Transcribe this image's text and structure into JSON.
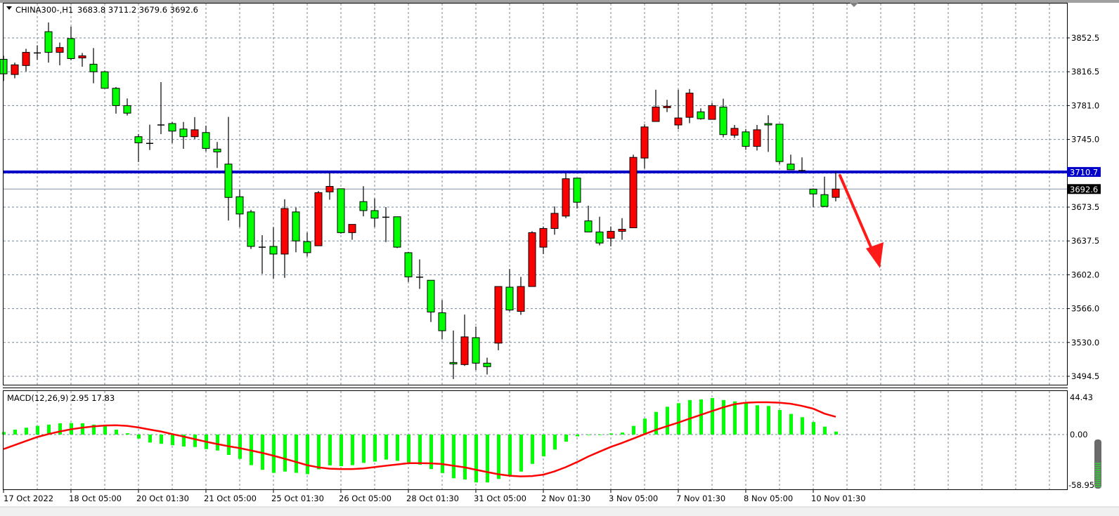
{
  "header": {
    "symbol_label": "CHINA300-,H1",
    "ohlc_text": "3683.8 3711.2 3679.6 3692.6",
    "menu_icon": "triangle-down-icon"
  },
  "macd": {
    "label": "MACD(12,26,9) 2.95 17.83",
    "axis_top": "44.43",
    "axis_zero": "0.00",
    "axis_bottom": "-58.95"
  },
  "price_axis": {
    "ticks": [
      "3852.5",
      "3816.5",
      "3781.0",
      "3745.0",
      "3673.5",
      "3637.5",
      "3602.0",
      "3566.0",
      "3530.0",
      "3494.5"
    ],
    "horizontal_line_label": "3710.7",
    "current_price_label": "3692.6"
  },
  "time_axis": {
    "labels": [
      "17 Oct 2022",
      "18 Oct 05:00",
      "20 Oct 01:30",
      "21 Oct 05:00",
      "25 Oct 01:30",
      "26 Oct 05:00",
      "28 Oct 01:30",
      "31 Oct 05:00",
      "2 Nov 01:30",
      "3 Nov 05:00",
      "7 Nov 01:30",
      "8 Nov 05:00",
      "10 Nov 01:30"
    ]
  },
  "colors": {
    "bull_candle": "#ff0000",
    "bear_candle": "#00ff00",
    "horizontal_line": "#0000c8",
    "macd_histogram": "#00ff00",
    "macd_signal": "#ff0000",
    "arrow": "#ff1a1a",
    "grid": "#778899"
  },
  "chart_data": [
    {
      "type": "candlestick",
      "title": "CHINA300-,H1",
      "timeframe": "H1",
      "ylim": [
        3494.5,
        3852.5
      ],
      "grid": true,
      "horizontal_line": 3710.7,
      "current_price": 3692.6,
      "x_tick_labels": [
        "17 Oct 2022",
        "18 Oct 05:00",
        "20 Oct 01:30",
        "21 Oct 05:00",
        "25 Oct 01:30",
        "26 Oct 05:00",
        "28 Oct 01:30",
        "31 Oct 05:00",
        "2 Nov 01:30",
        "3 Nov 05:00",
        "7 Nov 01:30",
        "8 Nov 05:00",
        "10 Nov 01:30"
      ],
      "ohlc": [
        [
          3829.9,
          3833.7,
          3806.9,
          3814.5
        ],
        [
          3813.8,
          3826.4,
          3809.8,
          3824.0
        ],
        [
          3823.3,
          3841.0,
          3817.1,
          3837.2
        ],
        [
          3836.6,
          3844.7,
          3829.3,
          3836.6
        ],
        [
          3859.1,
          3868.8,
          3826.4,
          3837.2
        ],
        [
          3837.2,
          3847.6,
          3823.5,
          3842.3
        ],
        [
          3851.8,
          3864.4,
          3828.8,
          3830.6
        ],
        [
          3831.3,
          3836.6,
          3822.0,
          3833.5
        ],
        [
          3824.7,
          3841.8,
          3804.5,
          3816.7
        ],
        [
          3816.7,
          3817.9,
          3799.2,
          3799.2
        ],
        [
          3799.2,
          3800.6,
          3772.4,
          3780.9
        ],
        [
          3780.9,
          3788.4,
          3770.4,
          3772.9
        ],
        [
          3748.0,
          3750.9,
          3721.2,
          3741.5
        ],
        [
          3740.9,
          3760.7,
          3733.9,
          3740.9
        ],
        [
          3760.4,
          3805.7,
          3750.7,
          3760.4
        ],
        [
          3761.9,
          3763.6,
          3741.2,
          3753.9
        ],
        [
          3756.1,
          3763.6,
          3735.1,
          3748.0
        ],
        [
          3748.0,
          3768.7,
          3745.5,
          3755.3
        ],
        [
          3752.4,
          3759.7,
          3732.4,
          3735.6
        ],
        [
          3734.9,
          3742.4,
          3714.9,
          3731.9
        ],
        [
          3719.0,
          3768.9,
          3659.3,
          3683.7
        ],
        [
          3684.5,
          3692.0,
          3652.3,
          3666.2
        ],
        [
          3668.4,
          3670.6,
          3629.2,
          3631.9
        ],
        [
          3631.1,
          3643.8,
          3602.9,
          3631.1
        ],
        [
          3631.9,
          3652.3,
          3598.0,
          3623.8
        ],
        [
          3623.8,
          3681.8,
          3598.7,
          3672.0
        ],
        [
          3668.4,
          3673.0,
          3625.7,
          3637.7
        ],
        [
          3637.0,
          3646.7,
          3621.3,
          3625.3
        ],
        [
          3632.6,
          3690.5,
          3632.6,
          3688.8
        ],
        [
          3689.6,
          3710.0,
          3681.3,
          3695.4
        ],
        [
          3692.9,
          3692.9,
          3645.4,
          3646.5
        ],
        [
          3646.5,
          3655.2,
          3638.9,
          3655.2
        ],
        [
          3679.3,
          3695.6,
          3663.7,
          3669.8
        ],
        [
          3669.8,
          3682.7,
          3652.3,
          3661.8
        ],
        [
          3662.8,
          3673.5,
          3636.5,
          3662.8
        ],
        [
          3663.3,
          3663.3,
          3630.1,
          3631.1
        ],
        [
          3625.3,
          3626.2,
          3594.3,
          3599.7
        ],
        [
          3599.4,
          3618.2,
          3587.0,
          3599.4
        ],
        [
          3596.1,
          3596.1,
          3551.9,
          3562.5
        ],
        [
          3561.7,
          3575.1,
          3533.5,
          3542.7
        ],
        [
          3509.1,
          3542.9,
          3491.6,
          3507.7
        ],
        [
          3506.9,
          3559.8,
          3505.5,
          3536.2
        ],
        [
          3535.4,
          3547.1,
          3501.1,
          3508.4
        ],
        [
          3508.4,
          3514.2,
          3496.4,
          3504.7
        ],
        [
          3529.6,
          3589.5,
          3522.0,
          3589.5
        ],
        [
          3588.8,
          3608.0,
          3563.2,
          3564.6
        ],
        [
          3563.2,
          3599.7,
          3559.5,
          3589.5
        ],
        [
          3589.5,
          3648.0,
          3589.5,
          3646.5
        ],
        [
          3631.1,
          3653.0,
          3623.8,
          3650.9
        ],
        [
          3650.9,
          3674.2,
          3644.3,
          3666.9
        ],
        [
          3664.0,
          3709.5,
          3661.8,
          3703.5
        ],
        [
          3704.2,
          3704.2,
          3672.0,
          3678.6
        ],
        [
          3658.9,
          3675.0,
          3647.2,
          3647.2
        ],
        [
          3647.2,
          3663.3,
          3633.0,
          3635.5
        ],
        [
          3640.6,
          3653.0,
          3631.9,
          3647.9
        ],
        [
          3647.9,
          3661.8,
          3638.9,
          3650.1
        ],
        [
          3651.6,
          3729.0,
          3651.6,
          3726.1
        ],
        [
          3725.4,
          3761.2,
          3714.4,
          3758.3
        ],
        [
          3764.1,
          3797.7,
          3764.1,
          3779.4
        ],
        [
          3778.7,
          3787.0,
          3774.0,
          3780.2
        ],
        [
          3760.4,
          3797.7,
          3755.8,
          3767.8
        ],
        [
          3768.5,
          3798.4,
          3762.3,
          3794.1
        ],
        [
          3774.3,
          3778.0,
          3766.0,
          3767.0
        ],
        [
          3766.3,
          3783.8,
          3766.3,
          3780.9
        ],
        [
          3779.4,
          3788.2,
          3747.3,
          3750.2
        ],
        [
          3749.5,
          3760.4,
          3746.6,
          3756.8
        ],
        [
          3753.1,
          3756.1,
          3734.1,
          3737.8
        ],
        [
          3737.8,
          3760.4,
          3733.4,
          3755.3
        ],
        [
          3761.9,
          3770.7,
          3731.9,
          3760.4
        ],
        [
          3761.2,
          3761.2,
          3718.8,
          3721.7
        ],
        [
          3719.0,
          3729.0,
          3713.0,
          3713.0
        ],
        [
          3712.1,
          3726.1,
          3711.2,
          3712.1
        ],
        [
          3692.5,
          3693.2,
          3673.5,
          3687.4
        ],
        [
          3686.7,
          3705.7,
          3673.5,
          3674.2
        ],
        [
          3683.8,
          3711.2,
          3679.6,
          3692.6
        ]
      ]
    },
    {
      "type": "bar",
      "title": "MACD(12,26,9)",
      "ylim": [
        -58.95,
        44.43
      ],
      "series": [
        {
          "name": "MACD",
          "kind": "histogram",
          "values": [
            2.6,
            4.9,
            6.9,
            8.7,
            10.0,
            11.3,
            11.5,
            11.3,
            10.0,
            8.7,
            4.9,
            1.3,
            -4.0,
            -8.0,
            -9.3,
            -10.7,
            -12.0,
            -12.5,
            -14.6,
            -16.0,
            -20.4,
            -24.4,
            -30.7,
            -35.3,
            -38.4,
            -37.1,
            -38.4,
            -39.7,
            -34.8,
            -30.9,
            -31.7,
            -30.7,
            -28.4,
            -27.1,
            -25.1,
            -26.4,
            -27.8,
            -30.2,
            -34.6,
            -38.6,
            -43.8,
            -45.1,
            -48.0,
            -48.0,
            -44.5,
            -40.7,
            -37.1,
            -29.4,
            -21.8,
            -15.1,
            -7.1,
            -1.8,
            -0.2,
            -0.2,
            1.1,
            2.0,
            8.7,
            16.0,
            22.7,
            27.9,
            31.5,
            34.6,
            35.3,
            36.6,
            34.6,
            33.3,
            31.5,
            29.4,
            28.7,
            24.6,
            20.7,
            17.4,
            12.6,
            8.0,
            2.95
          ]
        },
        {
          "name": "Signal",
          "kind": "line",
          "values": [
            -14.6,
            -10.5,
            -6.5,
            -2.5,
            0.5,
            3.1,
            5.3,
            6.9,
            8.2,
            9.1,
            9.3,
            8.7,
            7.1,
            5.0,
            3.1,
            0.5,
            -2.0,
            -4.6,
            -7.2,
            -9.5,
            -11.7,
            -13.6,
            -16.0,
            -18.4,
            -21.2,
            -24.2,
            -27.4,
            -30.7,
            -32.9,
            -34.2,
            -34.6,
            -34.6,
            -34.0,
            -32.7,
            -31.3,
            -30.0,
            -28.7,
            -28.7,
            -28.9,
            -29.6,
            -31.3,
            -32.9,
            -35.3,
            -37.6,
            -39.8,
            -41.3,
            -42.0,
            -41.6,
            -40.2,
            -36.9,
            -32.7,
            -27.6,
            -22.0,
            -17.1,
            -12.4,
            -8.4,
            -4.0,
            0.4,
            4.7,
            8.4,
            12.0,
            16.0,
            19.8,
            23.6,
            27.3,
            30.4,
            32.0,
            32.4,
            32.4,
            32.0,
            30.9,
            28.7,
            26.0,
            21.0,
            17.83
          ]
        }
      ]
    }
  ]
}
